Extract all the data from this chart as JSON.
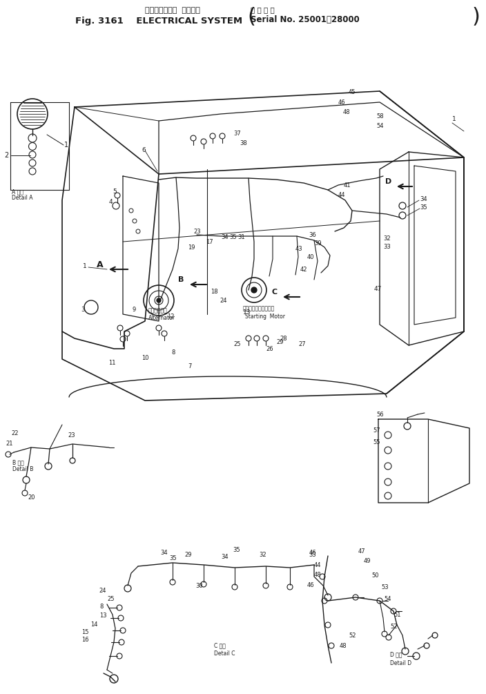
{
  "bg_color": "#ffffff",
  "line_color": "#1a1a1a",
  "fig_width": 7.04,
  "fig_height": 10.05,
  "dpi": 100,
  "title": {
    "jp": "エレクトリカル  システム",
    "fig": "Fig. 3161    ELECTRICAL SYSTEM",
    "serial_jp": "適 用 号 機",
    "serial_en": "Serial No. 25001～28000"
  }
}
